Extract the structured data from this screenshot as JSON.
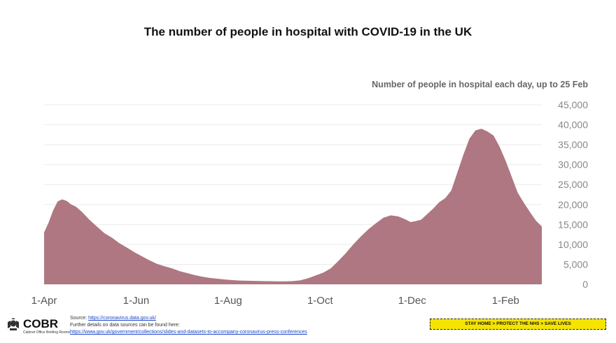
{
  "title": "The number of people in hospital with COVID-19 in the UK",
  "chart_data": {
    "type": "area",
    "title": "The number of people in hospital with COVID-19 in the UK",
    "subtitle": "Number of people in hospital each day, up to 25 Feb",
    "xlabel": "",
    "ylabel": "",
    "ylim": [
      0,
      45000
    ],
    "y_ticks": [
      0,
      5000,
      10000,
      15000,
      20000,
      25000,
      30000,
      35000,
      40000,
      45000
    ],
    "y_tick_labels": [
      "0",
      "5,000",
      "10,000",
      "15,000",
      "20,000",
      "25,000",
      "30,000",
      "35,000",
      "40,000",
      "45,000"
    ],
    "x_tick_labels": [
      "1-Apr",
      "1-Jun",
      "1-Aug",
      "1-Oct",
      "1-Dec",
      "1-Feb"
    ],
    "x_tick_day_index": [
      0,
      61,
      122,
      183,
      244,
      306
    ],
    "x_range_days": [
      0,
      330
    ],
    "grid": true,
    "color": "#ae7781",
    "series": [
      {
        "name": "Number of people in hospital",
        "points": [
          [
            0,
            13000
          ],
          [
            3,
            15500
          ],
          [
            6,
            18500
          ],
          [
            9,
            20800
          ],
          [
            12,
            21300
          ],
          [
            15,
            20900
          ],
          [
            18,
            20000
          ],
          [
            21,
            19500
          ],
          [
            25,
            18200
          ],
          [
            30,
            16200
          ],
          [
            35,
            14500
          ],
          [
            40,
            12800
          ],
          [
            45,
            11700
          ],
          [
            50,
            10300
          ],
          [
            55,
            9200
          ],
          [
            60,
            8000
          ],
          [
            65,
            7000
          ],
          [
            70,
            6000
          ],
          [
            75,
            5100
          ],
          [
            80,
            4500
          ],
          [
            85,
            4000
          ],
          [
            90,
            3300
          ],
          [
            95,
            2800
          ],
          [
            100,
            2300
          ],
          [
            105,
            1900
          ],
          [
            110,
            1600
          ],
          [
            115,
            1400
          ],
          [
            120,
            1200
          ],
          [
            125,
            1050
          ],
          [
            130,
            950
          ],
          [
            135,
            900
          ],
          [
            140,
            850
          ],
          [
            145,
            800
          ],
          [
            150,
            780
          ],
          [
            155,
            760
          ],
          [
            160,
            760
          ],
          [
            165,
            800
          ],
          [
            170,
            1000
          ],
          [
            175,
            1500
          ],
          [
            180,
            2200
          ],
          [
            185,
            2900
          ],
          [
            190,
            4000
          ],
          [
            195,
            5800
          ],
          [
            200,
            7800
          ],
          [
            205,
            10000
          ],
          [
            210,
            12000
          ],
          [
            215,
            13800
          ],
          [
            220,
            15300
          ],
          [
            225,
            16700
          ],
          [
            230,
            17300
          ],
          [
            235,
            17000
          ],
          [
            240,
            16200
          ],
          [
            243,
            15600
          ],
          [
            246,
            15800
          ],
          [
            250,
            16200
          ],
          [
            254,
            17600
          ],
          [
            258,
            19000
          ],
          [
            262,
            20600
          ],
          [
            266,
            21600
          ],
          [
            270,
            23500
          ],
          [
            274,
            28000
          ],
          [
            278,
            32500
          ],
          [
            282,
            36500
          ],
          [
            286,
            38600
          ],
          [
            290,
            39000
          ],
          [
            294,
            38300
          ],
          [
            298,
            37300
          ],
          [
            302,
            34500
          ],
          [
            306,
            31000
          ],
          [
            310,
            27000
          ],
          [
            314,
            23000
          ],
          [
            318,
            20500
          ],
          [
            322,
            18200
          ],
          [
            326,
            16000
          ],
          [
            330,
            14500
          ]
        ]
      }
    ]
  },
  "footer": {
    "logo_name": "COBR",
    "logo_sub": "Cabinet Office Briefing Rooms",
    "source_label": "Source: ",
    "source_link": "https://coronavirus.data.gov.uk/",
    "details_text": "Further details on data sources can be found here:",
    "details_link": "https://www.gov.uk/government/collections/slides-and-datasets-to-accompany-coronavirus-press-conferences",
    "banner": "STAY HOME > PROTECT THE NHS > SAVE LIVES"
  }
}
